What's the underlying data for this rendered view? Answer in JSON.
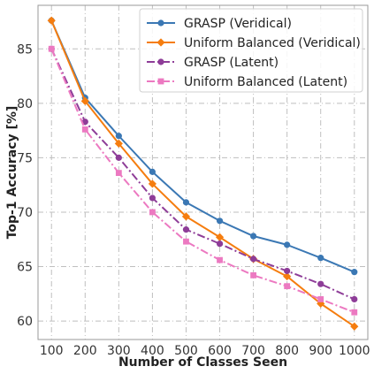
{
  "chart_data": {
    "type": "line",
    "title": "",
    "xlabel": "Number of Classes Seen",
    "ylabel": "Top-1 Accuracy [%]",
    "x": [
      100,
      200,
      300,
      400,
      500,
      600,
      700,
      800,
      900,
      1000
    ],
    "xlim": [
      60,
      1040
    ],
    "ylim": [
      58.3,
      89.0
    ],
    "yticks": [
      60,
      65,
      70,
      75,
      80,
      85
    ],
    "grid": true,
    "legend_position": "top-right",
    "series": [
      {
        "name": "GRASP (Veridical)",
        "color": "#3b78b4",
        "marker": "circle",
        "line_style": "solid",
        "values": [
          87.6,
          80.5,
          77.0,
          73.7,
          70.9,
          69.2,
          67.8,
          67.0,
          65.8,
          64.5
        ]
      },
      {
        "name": "Uniform Balanced (Veridical)",
        "color": "#f57d0f",
        "marker": "diamond",
        "line_style": "solid",
        "values": [
          87.6,
          80.2,
          76.3,
          72.6,
          69.6,
          67.7,
          65.7,
          64.1,
          61.6,
          59.5
        ]
      },
      {
        "name": "GRASP (Latent)",
        "color": "#8e3d98",
        "marker": "circle",
        "line_style": "dashdot",
        "values": [
          85.0,
          78.3,
          75.0,
          71.3,
          68.4,
          67.1,
          65.7,
          64.6,
          63.4,
          62.0
        ]
      },
      {
        "name": "Uniform Balanced (Latent)",
        "color": "#ec79c1",
        "marker": "square",
        "line_style": "dashdot",
        "values": [
          85.0,
          77.6,
          73.6,
          70.0,
          67.3,
          65.6,
          64.2,
          63.2,
          62.0,
          60.8
        ]
      }
    ]
  }
}
